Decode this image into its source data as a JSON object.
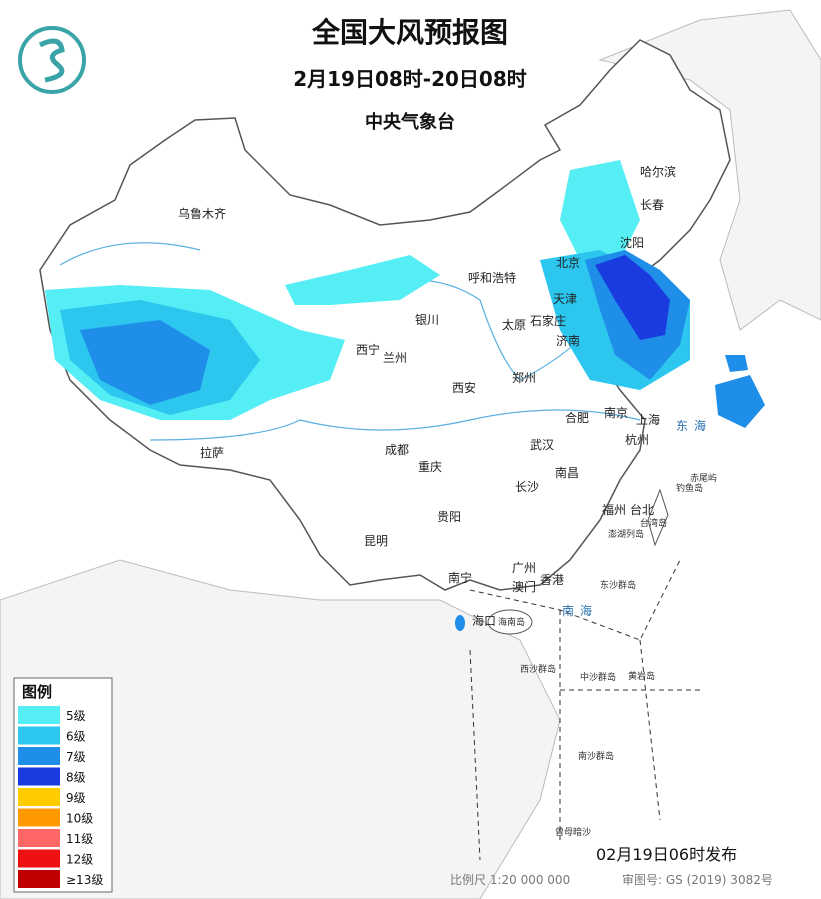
{
  "header": {
    "title": "全国大风预报图",
    "subtitle": "2月19日08时-20日08时",
    "issuer": "中央气象台"
  },
  "cities": [
    "乌鲁木齐",
    "哈尔滨",
    "长春",
    "沈阳",
    "北京",
    "呼和浩特",
    "天津",
    "银川",
    "太原",
    "石家庄",
    "济南",
    "西宁",
    "兰州",
    "郑州",
    "西安",
    "南京",
    "上海",
    "合肥",
    "杭州",
    "武汉",
    "成都",
    "重庆",
    "拉萨",
    "南昌",
    "长沙",
    "贵阳",
    "福州",
    "台北",
    "昆明",
    "南宁",
    "广州",
    "澳门",
    "香港",
    "海口"
  ],
  "places": [
    "海南岛",
    "台湾岛",
    "赤尾屿",
    "钓鱼岛",
    "澎湖列岛",
    "东沙群岛",
    "中沙群岛",
    "黄岩岛",
    "西沙群岛",
    "南沙群岛",
    "曾母暗沙"
  ],
  "seas": [
    "东海",
    "南海"
  ],
  "legend": {
    "title": "图例",
    "items": [
      {
        "label": "5级",
        "color": "#55eef5"
      },
      {
        "label": "6级",
        "color": "#2cc6ef"
      },
      {
        "label": "7级",
        "color": "#1e8ee8"
      },
      {
        "label": "8级",
        "color": "#1a3be0"
      },
      {
        "label": "9级",
        "color": "#ffcc00"
      },
      {
        "label": "10级",
        "color": "#ff9900"
      },
      {
        "label": "11级",
        "color": "#ff6666"
      },
      {
        "label": "12级",
        "color": "#ee1111"
      },
      {
        "label": "≥13级",
        "color": "#c00000"
      }
    ]
  },
  "footer": {
    "issued": "02月19日06时发布",
    "scale": "比例尺 1:20 000 000",
    "approval": "审图号: GS (2019) 3082号"
  }
}
